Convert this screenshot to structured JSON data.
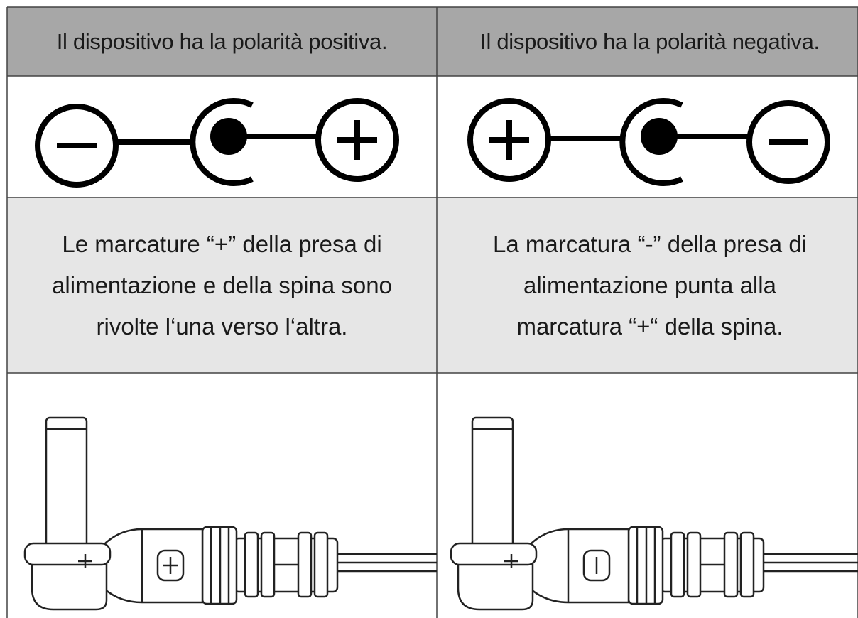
{
  "table": {
    "header": [
      "Il dispositivo ha la polarità positiva.",
      "Il dispositivo ha la polarità negativa."
    ],
    "descriptions": [
      [
        "Le marcature “+” della presa di",
        "alimentazione e della spina sono",
        "rivolte l‘una verso l‘altra."
      ],
      [
        "La marcatura “-” della presa di",
        "alimentazione punta alla",
        "marcatura “+“ della spina."
      ]
    ]
  }
}
